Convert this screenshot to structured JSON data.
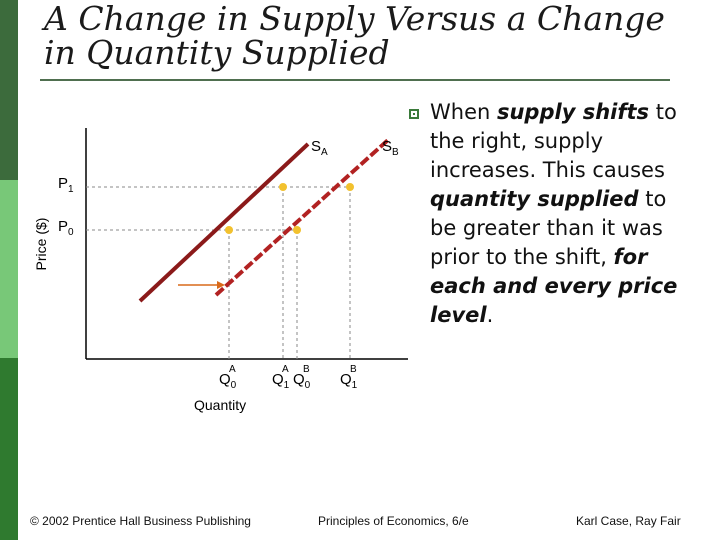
{
  "title": {
    "line1": "A Change in Supply Versus a Change",
    "line2": "in Quantity Supplied"
  },
  "bullet": {
    "parts": [
      {
        "text": "When ",
        "emph": false
      },
      {
        "text": "supply shifts",
        "emph": true
      },
      {
        "text": " to the right, supply increases. This causes ",
        "emph": false
      },
      {
        "text": "quantity supplied",
        "emph": true
      },
      {
        "text": " to be greater than it was prior to the shift, ",
        "emph": false
      },
      {
        "text": "for each and every price level",
        "emph": true
      },
      {
        "text": ".",
        "emph": false
      }
    ]
  },
  "diagram": {
    "y_axis_label": "Price ($)",
    "x_axis_label": "Quantity",
    "price_labels": [
      {
        "main": "P",
        "sub": "1"
      },
      {
        "main": "P",
        "sub": "0"
      }
    ],
    "supply_labels": [
      {
        "main": "S",
        "sub": "A"
      },
      {
        "main": "S",
        "sub": "B"
      }
    ],
    "quantity_labels": [
      {
        "main": "Q",
        "sub": "0",
        "sup": "A"
      },
      {
        "main": "Q",
        "sub": "1",
        "sup": "A"
      },
      {
        "main": "Q",
        "sub": "0",
        "sup": "B"
      },
      {
        "main": "Q",
        "sub": "1",
        "sup": "B"
      }
    ],
    "colors": {
      "supply_a": "#8b1a1a",
      "supply_b": "#b22222",
      "point": "#f2c12e",
      "guide": "#888888",
      "arrow": "#d96a1a"
    }
  },
  "footer": {
    "left": "© 2002 Prentice Hall Business Publishing",
    "center": "Principles of Economics, 6/e",
    "right": "Karl Case, Ray Fair"
  }
}
